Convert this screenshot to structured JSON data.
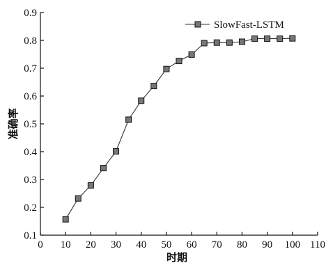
{
  "chart_data": {
    "type": "line",
    "xlabel": "时期",
    "ylabel": "准确率",
    "xlim": [
      0,
      110
    ],
    "ylim": [
      0.1,
      0.9
    ],
    "xticks": [
      0,
      10,
      20,
      30,
      40,
      50,
      60,
      70,
      80,
      90,
      100,
      110
    ],
    "yticks": [
      0.1,
      0.2,
      0.3,
      0.4,
      0.5,
      0.6,
      0.7,
      0.8,
      0.9
    ],
    "legend_position": "top-right",
    "grid": false,
    "series": [
      {
        "name": "SlowFast-LSTM",
        "color": "#333333",
        "marker": "square",
        "x": [
          10,
          15,
          20,
          25,
          30,
          35,
          40,
          45,
          50,
          55,
          60,
          65,
          70,
          75,
          80,
          85,
          90,
          95,
          100
        ],
        "y": [
          0.157,
          0.232,
          0.279,
          0.341,
          0.401,
          0.515,
          0.583,
          0.636,
          0.697,
          0.726,
          0.749,
          0.79,
          0.792,
          0.792,
          0.795,
          0.806,
          0.806,
          0.806,
          0.807
        ]
      }
    ]
  }
}
